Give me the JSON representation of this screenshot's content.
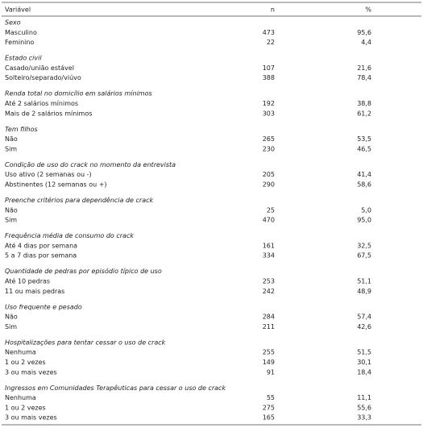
{
  "table": {
    "header": [
      "Variável",
      "n",
      "%"
    ],
    "groups": [
      {
        "title": "Sexo",
        "rows": [
          [
            "Masculino",
            473,
            "95,6"
          ],
          [
            "Feminino",
            22,
            "4,4"
          ]
        ]
      },
      {
        "title": "Estado civil",
        "rows": [
          [
            "Casado/união estável",
            107,
            "21,6"
          ],
          [
            "Solteiro/separado/viúvo",
            388,
            "78,4"
          ]
        ]
      },
      {
        "title": "Renda total no domicílio em salários mínimos",
        "rows": [
          [
            "Até 2 salários mínimos",
            192,
            "38,8"
          ],
          [
            "Mais de 2 salários mínimos",
            303,
            "61,2"
          ]
        ]
      },
      {
        "title": "Tem filhos",
        "rows": [
          [
            "Não",
            265,
            "53,5"
          ],
          [
            "Sim",
            230,
            "46,5"
          ]
        ]
      },
      {
        "title": "Condição de uso do crack no momento da entrevista",
        "rows": [
          [
            "Uso ativo (2 semanas ou -)",
            205,
            "41,4"
          ],
          [
            "Abstinentes (12 semanas ou +)",
            290,
            "58,6"
          ]
        ]
      },
      {
        "title": "Preenche critérios para dependência de crack",
        "rows": [
          [
            "Não",
            25,
            "5,0"
          ],
          [
            "Sim",
            470,
            "95,0"
          ]
        ]
      },
      {
        "title": "Frequência média de consumo do crack",
        "rows": [
          [
            "Até 4 dias por semana",
            161,
            "32,5"
          ],
          [
            "5 a 7 dias por semana",
            334,
            "67,5"
          ]
        ]
      },
      {
        "title": "Quantidade de pedras por episódio típico de uso",
        "rows": [
          [
            "Até 10 pedras",
            253,
            "51,1"
          ],
          [
            "11 ou mais pedras",
            242,
            "48,9"
          ]
        ]
      },
      {
        "title": "Uso frequente e pesado",
        "rows": [
          [
            "Não",
            284,
            "57,4"
          ],
          [
            "Sim",
            211,
            "42,6"
          ]
        ]
      },
      {
        "title": "Hospitalizações para tentar cessar o uso de crack",
        "rows": [
          [
            "Nenhuma",
            255,
            "51,5"
          ],
          [
            "1 ou 2 vezes",
            149,
            "30,1"
          ],
          [
            "3 ou mais vezes",
            91,
            "18,4"
          ]
        ]
      },
      {
        "title": "Ingressos em Comunidades Terapêuticas para cessar o uso de crack",
        "rows": [
          [
            "Nenhuma",
            55,
            "11,1"
          ],
          [
            "1 ou 2 vezes",
            275,
            "55,6"
          ],
          [
            "3 ou mais vezes",
            165,
            "33,3"
          ]
        ]
      }
    ]
  }
}
